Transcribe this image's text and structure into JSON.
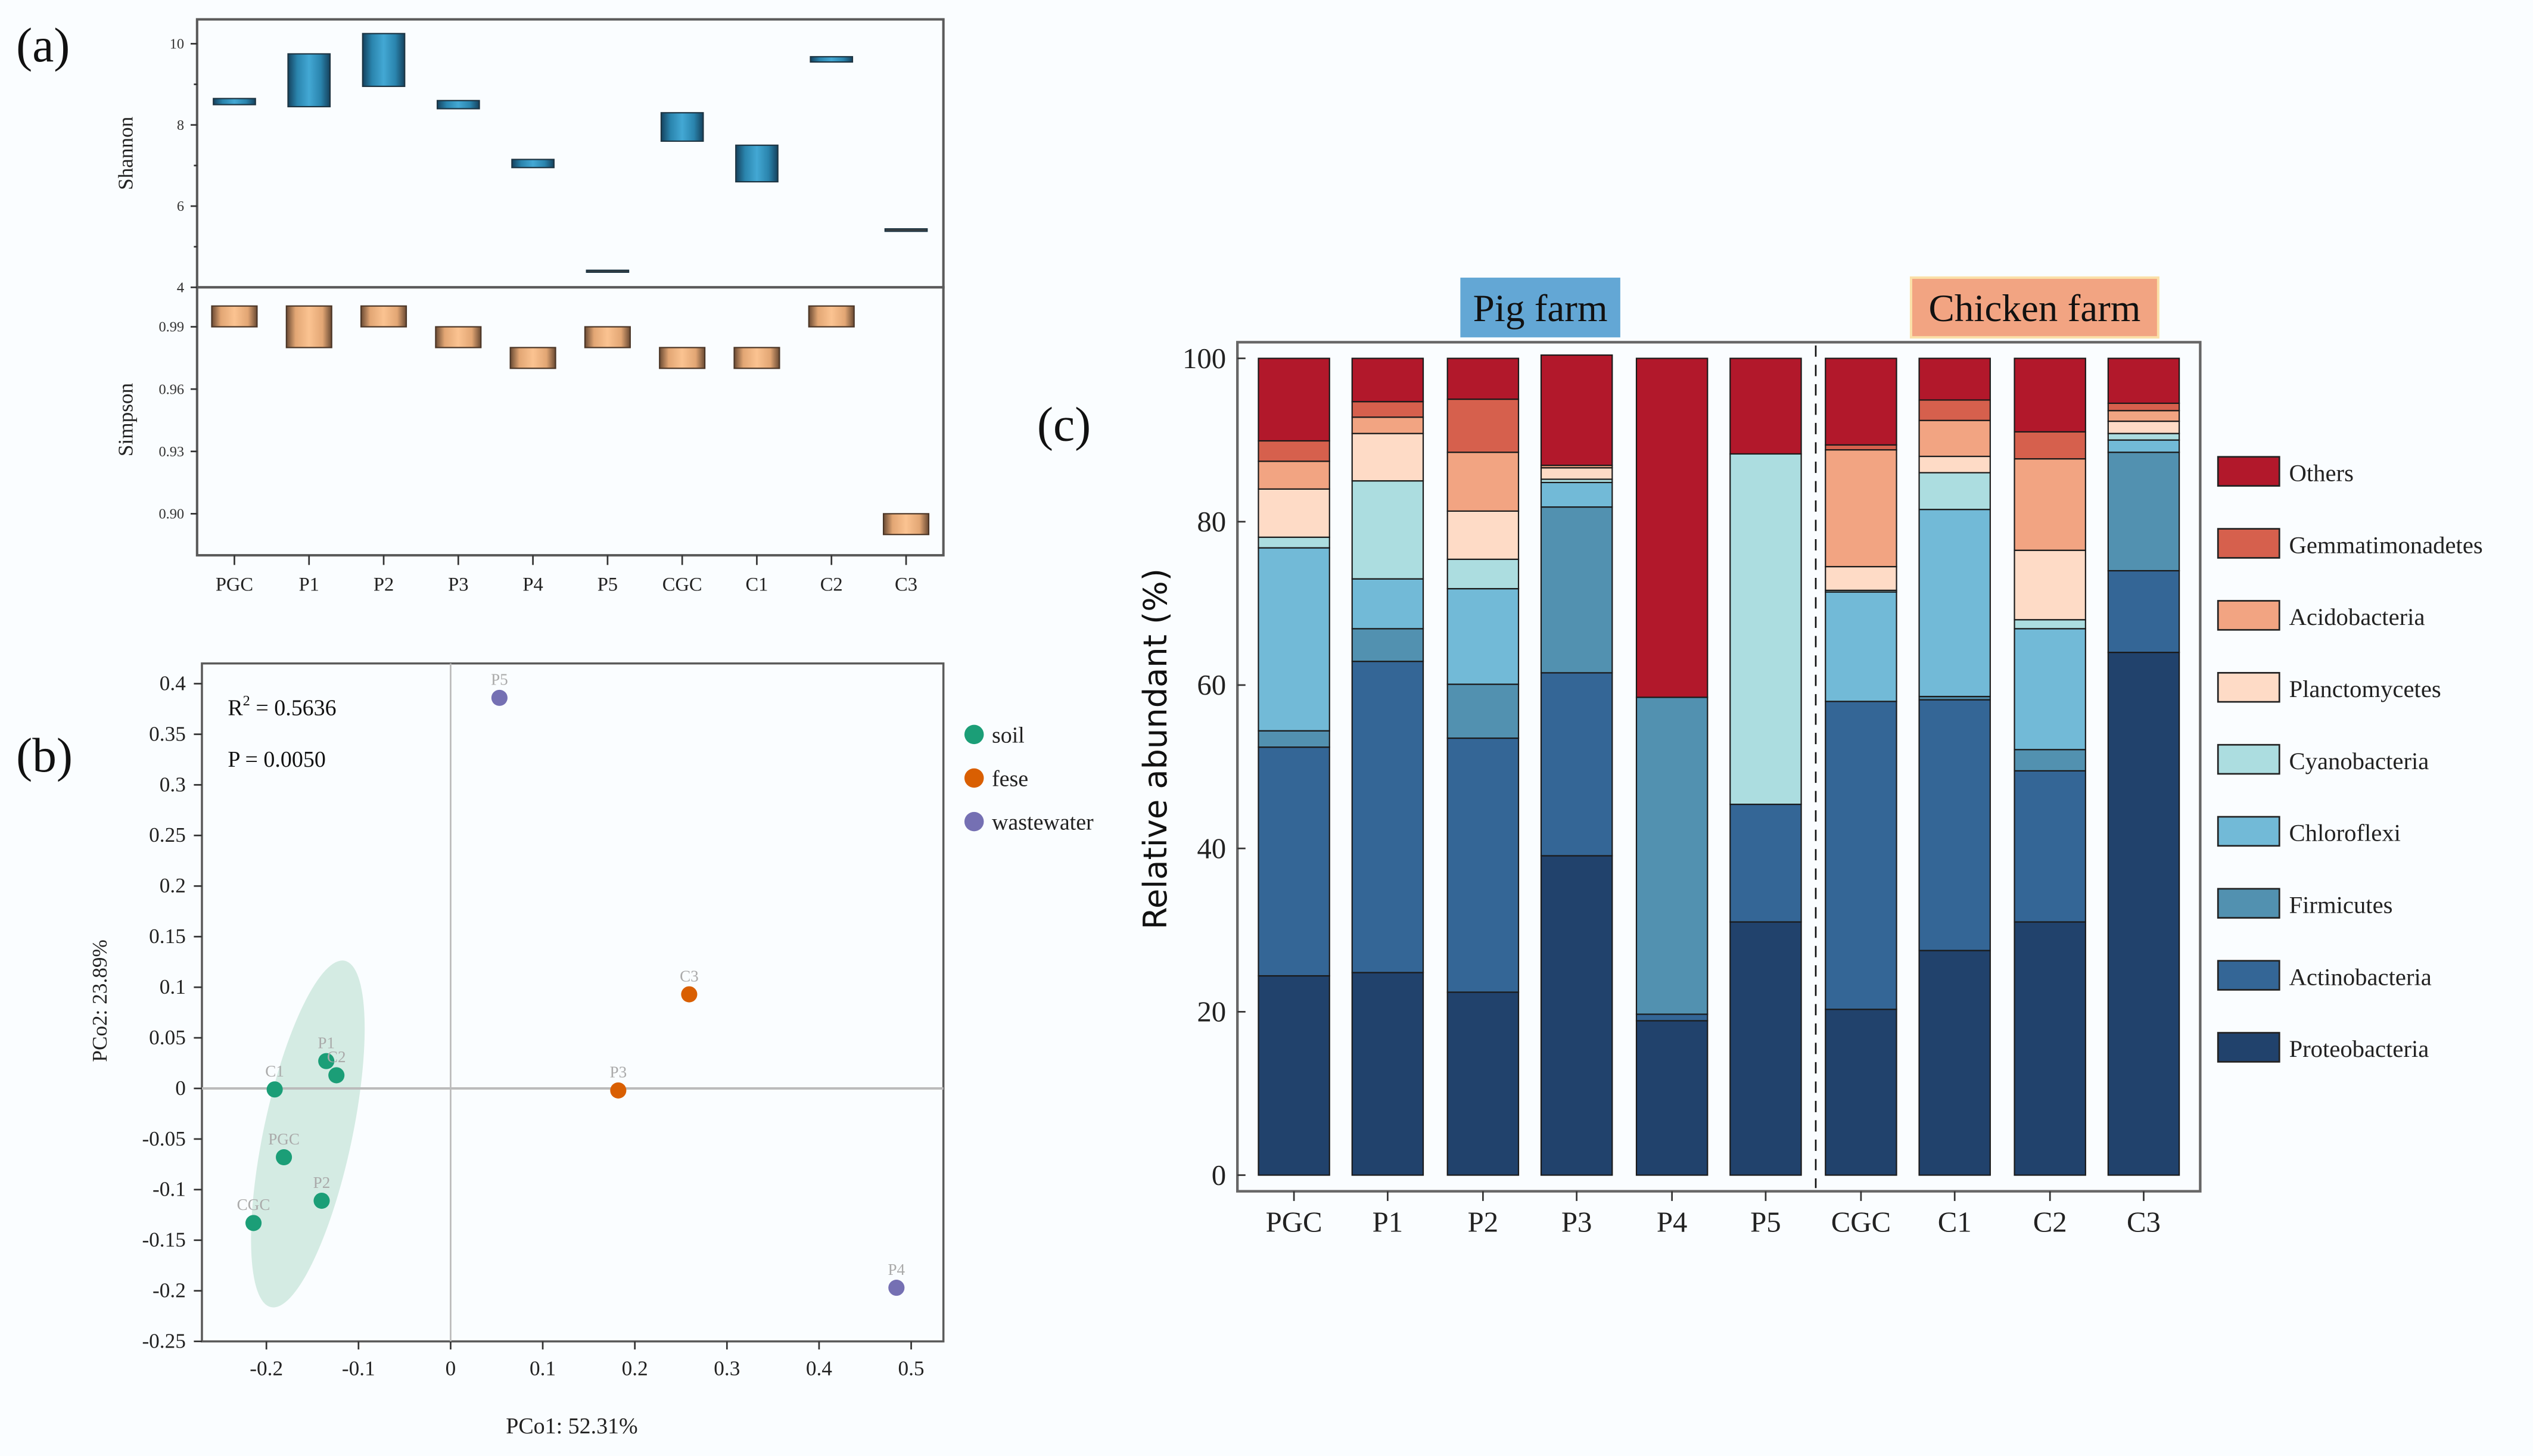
{
  "figure": {
    "panel_labels": {
      "a": "(a)",
      "b": "(b)",
      "c": "(c)"
    }
  },
  "chart_data": [
    {
      "id": "a_shannon",
      "type": "bar",
      "subtype": "floating-range",
      "title": "",
      "xlabel": "",
      "ylabel": "Shannon",
      "categories": [
        "PGC",
        "P1",
        "P2",
        "P3",
        "P4",
        "P5",
        "CGC",
        "C1",
        "C2",
        "C3"
      ],
      "ranges": [
        [
          8.5,
          8.65
        ],
        [
          8.45,
          9.75
        ],
        [
          8.95,
          10.25
        ],
        [
          8.4,
          8.6
        ],
        [
          6.95,
          7.15
        ],
        [
          4.38,
          4.42
        ],
        [
          7.6,
          8.3
        ],
        [
          6.6,
          7.5
        ],
        [
          9.55,
          9.68
        ],
        [
          5.38,
          5.44
        ]
      ],
      "ylim": [
        4,
        10.6
      ],
      "yticks": [
        4,
        6,
        8,
        10
      ],
      "color": "#3a9cc6"
    },
    {
      "id": "a_simpson",
      "type": "bar",
      "subtype": "floating-range",
      "title": "",
      "xlabel": "",
      "ylabel": "Simpson",
      "categories": [
        "PGC",
        "P1",
        "P2",
        "P3",
        "P4",
        "P5",
        "CGC",
        "C1",
        "C2",
        "C3"
      ],
      "ranges": [
        [
          0.99,
          1.0
        ],
        [
          0.98,
          1.0
        ],
        [
          0.99,
          1.0
        ],
        [
          0.98,
          0.99
        ],
        [
          0.97,
          0.98
        ],
        [
          0.98,
          0.99
        ],
        [
          0.97,
          0.98
        ],
        [
          0.97,
          0.98
        ],
        [
          0.99,
          1.0
        ],
        [
          0.89,
          0.9
        ]
      ],
      "ylim": [
        0.88,
        1.009
      ],
      "yticks": [
        0.9,
        0.93,
        0.96,
        0.99
      ],
      "ytick_labels": [
        "0.90",
        "0.93",
        "0.96",
        "0.99"
      ],
      "color": "#f6b889"
    },
    {
      "id": "b_pcoa",
      "type": "scatter",
      "title": "",
      "xlabel": "PCo1: 52.31%",
      "ylabel": "PCo2: 23.89%",
      "xlim": [
        -0.27,
        0.535
      ],
      "ylim": [
        -0.25,
        0.42
      ],
      "xticks": [
        -0.2,
        -0.1,
        0,
        0.1,
        0.2,
        0.3,
        0.4,
        0.5
      ],
      "xtick_labels": [
        "-0.2",
        "-0.1",
        "0",
        "0.1",
        "0.2",
        "0.3",
        "0.4",
        "0.5"
      ],
      "yticks": [
        -0.25,
        -0.2,
        -0.15,
        -0.1,
        -0.05,
        0,
        0.05,
        0.1,
        0.15,
        0.2,
        0.25,
        0.3,
        0.35,
        0.4
      ],
      "ytick_labels": [
        "-0.25",
        "-0.2",
        "-0.15",
        "-0.1",
        "-0.05",
        "0",
        "0.05",
        "0.1",
        "0.15",
        "0.2",
        "0.25",
        "0.3",
        "0.35",
        "0.4"
      ],
      "annotations": {
        "r2_prefix": "R",
        "r2_sup": "2",
        "r2_value": " = 0.5636",
        "p": "P = 0.0050"
      },
      "legend": {
        "placement": "right",
        "entries": [
          {
            "name": "soil",
            "color": "#1b9e77"
          },
          {
            "name": "fese",
            "color": "#d95f02"
          },
          {
            "name": "wastewater",
            "color": "#7570b3"
          }
        ]
      },
      "ellipse": {
        "group": "soil",
        "center": [
          -0.155,
          -0.045
        ],
        "rx": 0.048,
        "ry": 0.175,
        "rotate_deg": 12,
        "color": "#cfe9e0"
      },
      "points": [
        {
          "label": "P5",
          "group": "wastewater",
          "x": 0.053,
          "y": 0.386
        },
        {
          "label": "C3",
          "group": "fese",
          "x": 0.259,
          "y": 0.093
        },
        {
          "label": "P3",
          "group": "fese",
          "x": 0.182,
          "y": -0.002
        },
        {
          "label": "P4",
          "group": "wastewater",
          "x": 0.484,
          "y": -0.197
        },
        {
          "label": "P1",
          "group": "soil",
          "x": -0.135,
          "y": 0.027
        },
        {
          "label": "C2",
          "group": "soil",
          "x": -0.124,
          "y": 0.013
        },
        {
          "label": "C1",
          "group": "soil",
          "x": -0.191,
          "y": -0.001
        },
        {
          "label": "PGC",
          "group": "soil",
          "x": -0.181,
          "y": -0.068
        },
        {
          "label": "P2",
          "group": "soil",
          "x": -0.14,
          "y": -0.111
        },
        {
          "label": "CGC",
          "group": "soil",
          "x": -0.214,
          "y": -0.133
        }
      ]
    },
    {
      "id": "c_composition",
      "type": "bar",
      "subtype": "stacked-percent",
      "title": "",
      "xlabel": "",
      "ylabel": "Relative abundant (%)",
      "ylim": [
        0,
        100
      ],
      "yticks": [
        0,
        20,
        40,
        60,
        80,
        100
      ],
      "groups": [
        {
          "name": "Pig farm",
          "color": "#63a7d5",
          "categories": [
            "PGC",
            "P1",
            "P2",
            "P3",
            "P4",
            "P5"
          ]
        },
        {
          "name": "Chicken farm",
          "color": "#f2a482",
          "categories": [
            "CGC",
            "C1",
            "C2",
            "C3"
          ]
        }
      ],
      "categories": [
        "PGC",
        "P1",
        "P2",
        "P3",
        "P4",
        "P5",
        "CGC",
        "C1",
        "C2",
        "C3"
      ],
      "legend_placement": "right",
      "series": [
        {
          "name": "Proteobacteria",
          "color": "#21426c",
          "values": [
            24.4,
            24.8,
            22.4,
            39.1,
            18.9,
            31.0,
            20.3,
            27.5,
            31.0,
            64.0
          ]
        },
        {
          "name": "Actinobacteria",
          "color": "#346696",
          "values": [
            28.0,
            38.1,
            31.1,
            22.4,
            0.8,
            14.4,
            37.7,
            30.7,
            18.5,
            10.0
          ]
        },
        {
          "name": "Firmicutes",
          "color": "#5291b0",
          "values": [
            2.0,
            4.0,
            6.6,
            20.3,
            38.8,
            0.0,
            0.0,
            0.4,
            2.6,
            14.5
          ]
        },
        {
          "name": "Chloroflexi",
          "color": "#72bad7",
          "values": [
            22.4,
            6.1,
            11.7,
            3.0,
            0.0,
            0.0,
            13.4,
            22.9,
            14.8,
            1.5
          ]
        },
        {
          "name": "Cyanobacteria",
          "color": "#acdde0",
          "values": [
            1.3,
            12.0,
            3.6,
            0.4,
            0.0,
            42.9,
            0.2,
            4.5,
            1.1,
            0.8
          ]
        },
        {
          "name": "Planctomycetes",
          "color": "#fedbc6",
          "values": [
            5.9,
            5.8,
            5.9,
            1.4,
            0.0,
            0.0,
            2.9,
            2.0,
            8.5,
            1.5
          ]
        },
        {
          "name": "Acidobacteria",
          "color": "#f2a482",
          "values": [
            3.4,
            2.0,
            7.2,
            0.3,
            0.0,
            0.0,
            14.3,
            4.4,
            11.2,
            1.3
          ]
        },
        {
          "name": "Gemmatimonadetes",
          "color": "#d6604d",
          "values": [
            2.5,
            1.9,
            6.5,
            0.0,
            0.0,
            0.0,
            0.6,
            2.5,
            3.3,
            0.9
          ]
        },
        {
          "name": "Others",
          "color": "#b2182b",
          "values": [
            10.1,
            5.3,
            5.0,
            13.5,
            41.5,
            11.7,
            10.6,
            5.1,
            9.0,
            5.5
          ]
        }
      ],
      "legend_order": [
        "Others",
        "Gemmatimonadetes",
        "Acidobacteria",
        "Planctomycetes",
        "Cyanobacteria",
        "Chloroflexi",
        "Firmicutes",
        "Actinobacteria",
        "Proteobacteria"
      ]
    }
  ]
}
